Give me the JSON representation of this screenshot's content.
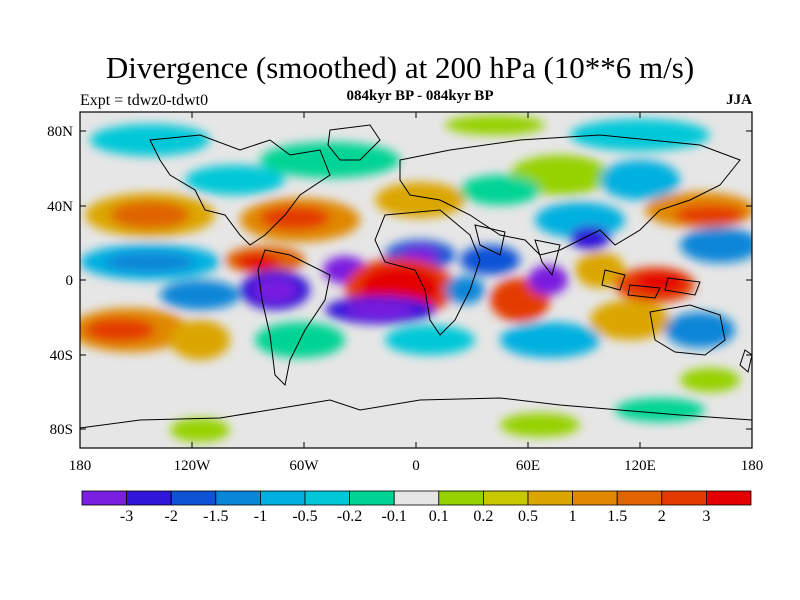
{
  "title": "Divergence (smoothed) at 200 hPa (10**6 m/s)",
  "experiment_label": "Expt = tdwz0-tdwt0",
  "period_label": "084kyr BP - 084kyr BP",
  "season_label": "JJA",
  "map": {
    "lat_ticks": [
      "80N",
      "40N",
      "0",
      "40S",
      "80S"
    ],
    "lon_ticks": [
      "180",
      "120W",
      "60W",
      "0",
      "60E",
      "120E",
      "180"
    ]
  },
  "colorbar": {
    "colors": [
      "#7a1ee0",
      "#3016d8",
      "#0e52d6",
      "#0a86d8",
      "#00b0e0",
      "#00c8d8",
      "#00d494",
      "#e6e6e6",
      "#96d200",
      "#c8c800",
      "#dca600",
      "#e08800",
      "#e06400",
      "#e43a00",
      "#e40000"
    ],
    "labels": [
      "-3",
      "-2",
      "-1.5",
      "-1",
      "-0.5",
      "-0.2",
      "-0.1",
      "0.1",
      "0.2",
      "0.5",
      "1",
      "1.5",
      "2",
      "3"
    ]
  }
}
